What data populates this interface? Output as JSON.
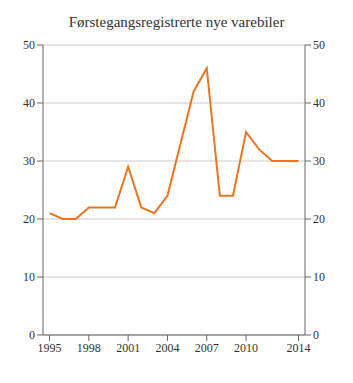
{
  "chart_data": {
    "type": "line",
    "title": "Førstegangsregistrerte nye varebiler",
    "x": [
      1995,
      1996,
      1997,
      1998,
      1999,
      2000,
      2001,
      2002,
      2003,
      2004,
      2005,
      2006,
      2007,
      2008,
      2009,
      2010,
      2011,
      2012,
      2013,
      2014
    ],
    "values": [
      21,
      20,
      20,
      22,
      22,
      22,
      29,
      22,
      21,
      24,
      33,
      42,
      46,
      24,
      24,
      35,
      32,
      30,
      30,
      30
    ],
    "color": "#E87722",
    "xlim": [
      1994.5,
      2014.5
    ],
    "xticks": [
      1995,
      1998,
      2001,
      2004,
      2007,
      2010,
      2014
    ],
    "ylim": [
      0,
      50
    ],
    "yticks": [
      0,
      10,
      20,
      30,
      40,
      50
    ],
    "y2lim": [
      0,
      50
    ],
    "y2ticks": [
      0,
      10,
      20,
      30,
      40,
      50
    ],
    "grid": true
  }
}
